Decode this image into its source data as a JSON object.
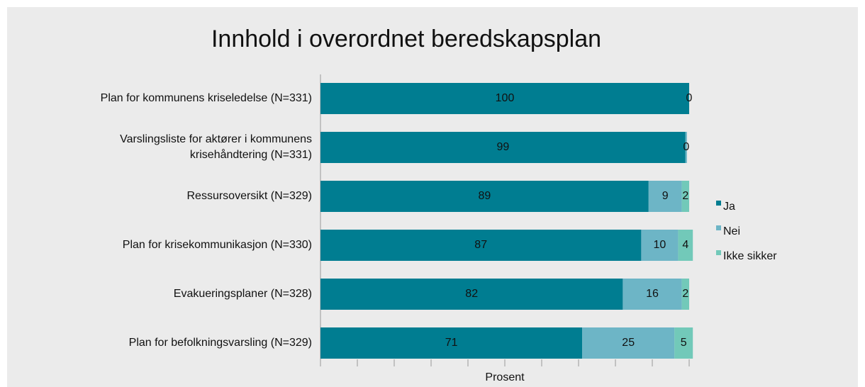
{
  "chart_data": {
    "type": "stacked_bar_horizontal",
    "title": "Innhold i overordnet beredskapsplan",
    "x_label": "Prosent",
    "categories": [
      "Plan for kommunens kriseledelse (N=331)",
      "Varslingsliste for aktører i kommunens\nkrisehåndtering (N=331)",
      "Ressursoversikt (N=329)",
      "Plan for krisekommunikasjon (N=330)",
      "Evakueringsplaner (N=328)",
      "Plan for befolkningsvarsling (N=329)"
    ],
    "series": [
      {
        "name": "Ja",
        "color": "#007d91",
        "values": [
          100,
          99,
          89,
          87,
          82,
          71
        ]
      },
      {
        "name": "Nei",
        "color": "#6db5c6",
        "values": [
          0,
          0.4,
          9,
          10,
          16,
          25
        ],
        "value_labels": [
          "0",
          "0",
          "9",
          "10",
          "16",
          "25"
        ]
      },
      {
        "name": "Ikke sikker",
        "color": "#72c9b9",
        "values": [
          null,
          null,
          2,
          4,
          2,
          5
        ]
      }
    ],
    "xlim": [
      0,
      100
    ],
    "xticks": [
      0,
      10,
      20,
      30,
      40,
      50,
      60,
      70,
      80,
      90,
      100
    ],
    "legend": "right"
  }
}
